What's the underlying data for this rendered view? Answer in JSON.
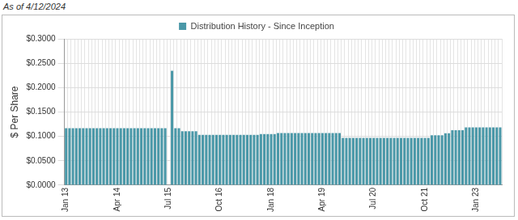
{
  "chart_data": {
    "type": "bar",
    "annotations": [
      "As of 4/12/2024"
    ],
    "y_label": "$ Per Share",
    "categories": [
      "Jan 13",
      null,
      null,
      null,
      null,
      null,
      null,
      null,
      null,
      null,
      null,
      null,
      null,
      null,
      null,
      "Apr 14",
      null,
      null,
      null,
      null,
      null,
      null,
      null,
      null,
      null,
      null,
      null,
      null,
      null,
      null,
      "Jul 15",
      null,
      null,
      null,
      null,
      null,
      null,
      null,
      null,
      null,
      null,
      null,
      null,
      null,
      null,
      "Oct 16",
      null,
      null,
      null,
      null,
      null,
      null,
      null,
      null,
      null,
      null,
      null,
      null,
      null,
      null,
      "Jan 18",
      null,
      null,
      null,
      null,
      null,
      null,
      null,
      null,
      null,
      null,
      null,
      null,
      null,
      null,
      "Apr 19",
      null,
      null,
      null,
      null,
      null,
      null,
      null,
      null,
      null,
      null,
      null,
      null,
      null,
      null,
      "Jul 20",
      null,
      null,
      null,
      null,
      null,
      null,
      null,
      null,
      null,
      null,
      null,
      null,
      null,
      null,
      "Oct 21",
      null,
      null,
      null,
      null,
      null,
      null,
      null,
      null,
      null,
      null,
      null,
      null,
      null,
      null,
      "Jan 23",
      null,
      null,
      null,
      null,
      null,
      null,
      null
    ],
    "series": [
      {
        "name": "Distribution History - Since Inception",
        "color": "#4a98a8",
        "values": [
          0.117,
          0.117,
          0.117,
          0.117,
          0.117,
          0.117,
          0.117,
          0.117,
          0.117,
          0.117,
          0.117,
          0.117,
          0.117,
          0.117,
          0.117,
          0.117,
          0.117,
          0.117,
          0.117,
          0.117,
          0.117,
          0.117,
          0.117,
          0.117,
          0.117,
          0.117,
          0.117,
          0.117,
          0.117,
          0.117,
          null,
          0.2345,
          0.117,
          0.117,
          0.1105,
          0.1105,
          0.1105,
          0.1105,
          0.1105,
          0.103,
          0.103,
          0.103,
          0.103,
          0.103,
          0.103,
          0.103,
          0.103,
          0.103,
          0.103,
          0.103,
          0.103,
          0.103,
          0.103,
          0.103,
          0.103,
          0.103,
          0.103,
          0.105,
          0.105,
          0.105,
          0.105,
          0.105,
          0.107,
          0.107,
          0.107,
          0.107,
          0.107,
          0.107,
          0.107,
          0.107,
          0.107,
          0.107,
          0.107,
          0.107,
          0.107,
          0.107,
          0.107,
          0.107,
          0.107,
          0.107,
          0.107,
          0.097,
          0.097,
          0.097,
          0.097,
          0.097,
          0.097,
          0.097,
          0.097,
          0.097,
          0.097,
          0.097,
          0.097,
          0.097,
          0.097,
          0.097,
          0.097,
          0.097,
          0.097,
          0.097,
          0.097,
          0.097,
          0.097,
          0.097,
          0.097,
          0.097,
          0.097,
          0.1025,
          0.1025,
          0.1025,
          0.1025,
          0.1065,
          0.1065,
          0.1125,
          0.1125,
          0.1125,
          0.1125,
          0.1185,
          0.1185,
          0.1185,
          0.1185,
          0.1185,
          0.1185,
          0.1185,
          0.1185,
          0.1185,
          0.1185,
          0.1185
        ]
      }
    ],
    "ylim": [
      0,
      0.3
    ],
    "yticks": [
      {
        "value": 0,
        "label": "$0.0000"
      },
      {
        "value": 0.05,
        "label": "$0.0500"
      },
      {
        "value": 0.1,
        "label": "$0.1000"
      },
      {
        "value": 0.15,
        "label": "$0.1500"
      },
      {
        "value": 0.2,
        "label": "$0.2000"
      },
      {
        "value": 0.25,
        "label": "$0.2500"
      },
      {
        "value": 0.3,
        "label": "$0.3000"
      }
    ],
    "grid": true,
    "legend": "top"
  }
}
